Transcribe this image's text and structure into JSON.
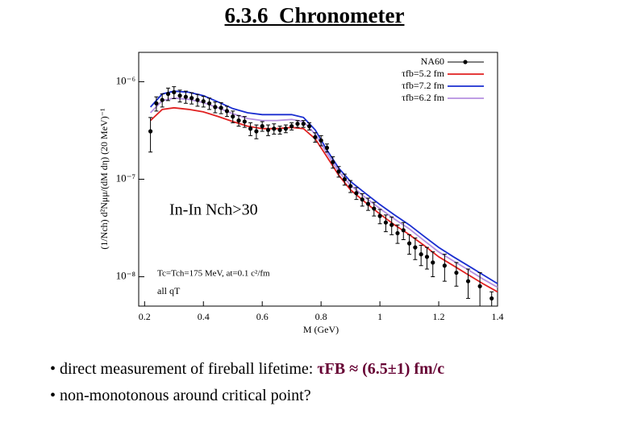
{
  "title": "6.3.6  Chronometer",
  "chart_data": {
    "type": "line",
    "xlabel": "M (GeV)",
    "ylabel": "(1/Nch) d²Nμμ/(dM dη) (20 MeV)⁻¹",
    "xlim": [
      0.18,
      1.4
    ],
    "xticks": [
      0.2,
      0.4,
      0.6,
      0.8,
      1,
      1.2,
      1.4
    ],
    "ylim": [
      5e-09,
      2e-06
    ],
    "log_y": true,
    "grid": false,
    "legend": "upper right",
    "yticks": [
      {
        "value": 1e-06,
        "label": "10⁻⁶"
      },
      {
        "value": 1e-07,
        "label": "10⁻⁷"
      },
      {
        "value": 1e-08,
        "label": "10⁻⁸"
      }
    ],
    "annotations": [
      "In-In  Nch>30",
      "Tc=Tch=175 MeV, at=0.1 c²/fm",
      "all qT"
    ],
    "series": [
      {
        "name": "NA60",
        "color": "#000000",
        "style": "points",
        "x": [
          0.22,
          0.24,
          0.26,
          0.28,
          0.3,
          0.32,
          0.34,
          0.36,
          0.38,
          0.4,
          0.42,
          0.44,
          0.46,
          0.48,
          0.5,
          0.52,
          0.54,
          0.56,
          0.58,
          0.6,
          0.62,
          0.64,
          0.66,
          0.68,
          0.7,
          0.72,
          0.74,
          0.76,
          0.78,
          0.8,
          0.82,
          0.84,
          0.86,
          0.88,
          0.9,
          0.92,
          0.94,
          0.96,
          0.98,
          1.0,
          1.02,
          1.04,
          1.06,
          1.08,
          1.1,
          1.12,
          1.14,
          1.16,
          1.18,
          1.22,
          1.26,
          1.3,
          1.34,
          1.38
        ],
        "values": [
          3.1e-07,
          6e-07,
          6.5e-07,
          7.5e-07,
          7.8e-07,
          7.2e-07,
          7e-07,
          6.8e-07,
          6.5e-07,
          6.3e-07,
          6e-07,
          5.5e-07,
          5.4e-07,
          5e-07,
          4.4e-07,
          4e-07,
          3.9e-07,
          3.3e-07,
          3.1e-07,
          3.5e-07,
          3.2e-07,
          3.3e-07,
          3.2e-07,
          3.3e-07,
          3.5e-07,
          3.7e-07,
          3.7e-07,
          3.5e-07,
          2.7e-07,
          2.5e-07,
          2.1e-07,
          1.5e-07,
          1.2e-07,
          1e-07,
          8.5e-08,
          7.2e-08,
          6.2e-08,
          5.6e-08,
          5e-08,
          4.2e-08,
          3.6e-08,
          3.4e-08,
          2.8e-08,
          3e-08,
          2.2e-08,
          2e-08,
          1.7e-08,
          1.6e-08,
          1.4e-08,
          1.3e-08,
          1.1e-08,
          9e-09,
          8e-09,
          6e-09
        ],
        "errors": [
          1.2e-07,
          1e-07,
          1e-07,
          1.1e-07,
          1.1e-07,
          1e-07,
          1e-07,
          9e-08,
          9e-08,
          8e-08,
          8e-08,
          7e-08,
          7e-08,
          6e-08,
          6e-08,
          5e-08,
          5e-08,
          5e-08,
          5e-08,
          4e-08,
          4e-08,
          4e-08,
          3e-08,
          3e-08,
          3e-08,
          3e-08,
          3e-08,
          3e-08,
          3e-08,
          3e-08,
          2e-08,
          2e-08,
          1.5e-08,
          1.3e-08,
          1.2e-08,
          1e-08,
          9e-09,
          8e-09,
          8e-09,
          7e-09,
          7e-09,
          7e-09,
          6e-09,
          6e-09,
          5e-09,
          5e-09,
          4e-09,
          4e-09,
          4e-09,
          4e-09,
          3e-09,
          3e-09,
          3e-09,
          1e-09
        ]
      },
      {
        "name": "τfb=5.2 fm",
        "color": "#e02020",
        "style": "line",
        "x": [
          0.22,
          0.26,
          0.3,
          0.35,
          0.4,
          0.45,
          0.5,
          0.55,
          0.6,
          0.65,
          0.7,
          0.74,
          0.78,
          0.82,
          0.86,
          0.9,
          0.95,
          1.0,
          1.05,
          1.1,
          1.15,
          1.2,
          1.25,
          1.3,
          1.35,
          1.4
        ],
        "values": [
          4e-07,
          5.2e-07,
          5.4e-07,
          5.2e-07,
          4.9e-07,
          4.4e-07,
          3.9e-07,
          3.5e-07,
          3.3e-07,
          3.3e-07,
          3.4e-07,
          3.3e-07,
          2.6e-07,
          1.7e-07,
          1.1e-07,
          7.8e-08,
          5.8e-08,
          4.4e-08,
          3.4e-08,
          2.7e-08,
          2.1e-08,
          1.6e-08,
          1.3e-08,
          1.05e-08,
          8.5e-09,
          7e-09
        ]
      },
      {
        "name": "τfb=7.2 fm",
        "color": "#1a2ed0",
        "style": "line",
        "x": [
          0.22,
          0.26,
          0.3,
          0.35,
          0.4,
          0.45,
          0.5,
          0.55,
          0.6,
          0.65,
          0.7,
          0.74,
          0.78,
          0.82,
          0.86,
          0.9,
          0.95,
          1.0,
          1.05,
          1.1,
          1.15,
          1.2,
          1.25,
          1.3,
          1.35,
          1.4
        ],
        "values": [
          5.5e-07,
          7.5e-07,
          8e-07,
          7.8e-07,
          7.2e-07,
          6.2e-07,
          5.3e-07,
          4.8e-07,
          4.6e-07,
          4.6e-07,
          4.6e-07,
          4.3e-07,
          3.2e-07,
          2e-07,
          1.3e-07,
          9.5e-08,
          7.2e-08,
          5.5e-08,
          4.3e-08,
          3.4e-08,
          2.6e-08,
          2e-08,
          1.6e-08,
          1.3e-08,
          1.05e-08,
          8.5e-09
        ]
      },
      {
        "name": "τfb=6.2 fm",
        "color": "#b48fe0",
        "style": "line",
        "x": [
          0.22,
          0.26,
          0.3,
          0.35,
          0.4,
          0.45,
          0.5,
          0.55,
          0.6,
          0.65,
          0.7,
          0.74,
          0.78,
          0.82,
          0.86,
          0.9,
          0.95,
          1.0,
          1.05,
          1.1,
          1.15,
          1.2,
          1.25,
          1.3,
          1.35,
          1.4
        ],
        "values": [
          4.8e-07,
          6.4e-07,
          6.8e-07,
          6.6e-07,
          6.1e-07,
          5.4e-07,
          4.7e-07,
          4.2e-07,
          4e-07,
          4e-07,
          4.1e-07,
          3.9e-07,
          2.9e-07,
          1.85e-07,
          1.2e-07,
          8.7e-08,
          6.5e-08,
          5e-08,
          3.9e-08,
          3.1e-08,
          2.35e-08,
          1.8e-08,
          1.45e-08,
          1.18e-08,
          9.5e-09,
          7.8e-09
        ]
      }
    ]
  },
  "bullets": [
    {
      "text": "direct measurement of fireball lifetime: ",
      "emphasis": "τFB ≈ (6.5±1) fm/c"
    },
    {
      "text": "non-monotonous around critical point?"
    }
  ]
}
